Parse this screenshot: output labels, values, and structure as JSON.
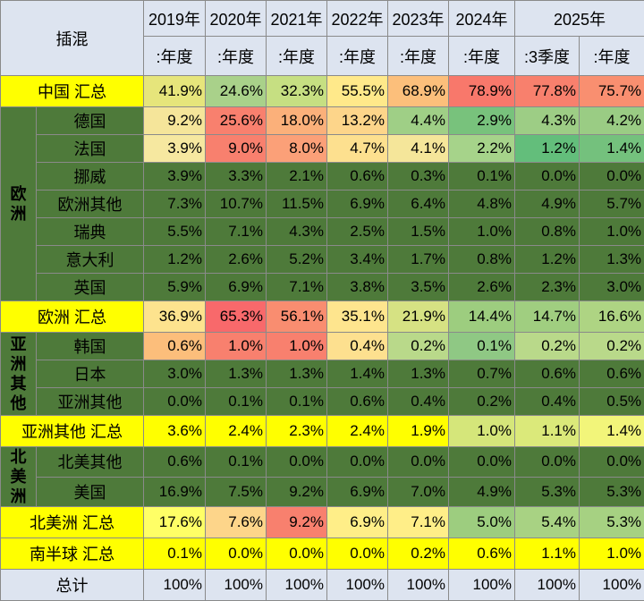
{
  "table": {
    "corner": "插混",
    "years": [
      "2019年",
      "2020年",
      "2021年",
      "2022年",
      "2023年",
      "2024年",
      "2025年"
    ],
    "periods": [
      ":年度",
      ":年度",
      ":年度",
      ":年度",
      ":年度",
      ":年度",
      ":3季度",
      ":年度"
    ],
    "sections": [
      {
        "label": "中国 汇总",
        "cells": [
          "41.9%",
          "24.6%",
          "32.3%",
          "55.5%",
          "68.9%",
          "78.9%",
          "77.8%",
          "75.7%"
        ],
        "fills": [
          "#e6e57b",
          "#a9d18a",
          "#c6df82",
          "#ffe98a",
          "#fcbf7b",
          "#f8786b",
          "#f8806d",
          "#f98f70"
        ]
      },
      {
        "group": "欧洲",
        "rows": [
          {
            "label": "德国",
            "cells": [
              "9.2%",
              "25.6%",
              "18.0%",
              "13.2%",
              "4.4%",
              "2.9%",
              "4.3%",
              "4.2%"
            ],
            "fills": [
              "#f5e59a",
              "#f8806e",
              "#fbb07a",
              "#fdd58a",
              "#9fcf86",
              "#78c27c",
              "#9dcd85",
              "#9acc84"
            ]
          },
          {
            "label": "法国",
            "cells": [
              "3.9%",
              "9.0%",
              "8.0%",
              "4.7%",
              "4.1%",
              "2.2%",
              "1.2%",
              "1.4%"
            ],
            "fills": [
              "#f6e8a0",
              "#f8806e",
              "#fba078",
              "#fde08f",
              "#f5e69a",
              "#a6d38a",
              "#63be7b",
              "#74c17d"
            ]
          },
          {
            "label": "挪威",
            "cells": [
              "3.9%",
              "3.3%",
              "2.1%",
              "0.6%",
              "0.3%",
              "0.1%",
              "0.0%",
              "0.0%"
            ],
            "fill": "#4e7a3a"
          },
          {
            "label": "欧洲其他",
            "cells": [
              "7.3%",
              "10.7%",
              "11.5%",
              "6.9%",
              "6.4%",
              "4.8%",
              "4.9%",
              "5.7%"
            ],
            "fill": "#4e7a3a"
          },
          {
            "label": "瑞典",
            "cells": [
              "5.5%",
              "7.1%",
              "4.3%",
              "2.5%",
              "1.5%",
              "1.0%",
              "0.8%",
              "1.0%"
            ],
            "fill": "#4e7a3a"
          },
          {
            "label": "意大利",
            "cells": [
              "1.2%",
              "2.6%",
              "5.2%",
              "3.4%",
              "1.7%",
              "0.8%",
              "1.2%",
              "1.3%"
            ],
            "fill": "#4e7a3a"
          },
          {
            "label": "英国",
            "cells": [
              "5.9%",
              "6.9%",
              "7.1%",
              "3.8%",
              "3.5%",
              "2.6%",
              "2.3%",
              "3.0%"
            ],
            "fill": "#4e7a3a"
          }
        ]
      },
      {
        "label": "欧洲 汇总",
        "cells": [
          "36.9%",
          "65.3%",
          "56.1%",
          "35.1%",
          "21.9%",
          "14.4%",
          "14.7%",
          "16.6%"
        ],
        "fills": [
          "#fde38e",
          "#f8696b",
          "#f98d70",
          "#fee58e",
          "#d6e283",
          "#9dcd7f",
          "#a0ce80",
          "#aed483"
        ]
      },
      {
        "group": "亚洲其他",
        "rows": [
          {
            "label": "韩国",
            "cells": [
              "0.6%",
              "1.0%",
              "1.0%",
              "0.4%",
              "0.2%",
              "0.1%",
              "0.2%",
              "0.2%"
            ],
            "fills": [
              "#fcbe7b",
              "#f8806e",
              "#f8806e",
              "#fde08f",
              "#b9d98a",
              "#8fc884",
              "#b9d98a",
              "#b9d98a"
            ]
          },
          {
            "label": "日本",
            "cells": [
              "3.0%",
              "1.3%",
              "1.3%",
              "1.4%",
              "1.3%",
              "0.7%",
              "0.6%",
              "0.6%"
            ],
            "fill": "#4e7a3a"
          },
          {
            "label": "亚洲其他",
            "cells": [
              "0.0%",
              "0.1%",
              "0.1%",
              "0.6%",
              "0.4%",
              "0.2%",
              "0.4%",
              "0.5%"
            ],
            "fill": "#4e7a3a"
          }
        ]
      },
      {
        "label": "亚洲其他 汇总",
        "cells": [
          "3.6%",
          "2.4%",
          "2.3%",
          "2.4%",
          "1.9%",
          "1.0%",
          "1.1%",
          "1.4%"
        ],
        "fills": [
          "#ffff00",
          "#ffff00",
          "#ffff00",
          "#ffff00",
          "#ffff00",
          "#d5e67a",
          "#dbe97a",
          "#f2f57a"
        ]
      },
      {
        "group": "北美洲",
        "rows": [
          {
            "label": "北美其他",
            "cells": [
              "0.6%",
              "0.1%",
              "0.0%",
              "0.0%",
              "0.0%",
              "0.0%",
              "0.0%",
              "0.0%"
            ],
            "fill": "#4e7a3a"
          },
          {
            "label": "美国",
            "cells": [
              "16.9%",
              "7.5%",
              "9.2%",
              "6.9%",
              "7.0%",
              "4.9%",
              "5.3%",
              "5.3%"
            ],
            "fill": "#4e7a3a"
          }
        ]
      },
      {
        "label": "北美洲 汇总",
        "cells": [
          "17.6%",
          "7.6%",
          "9.2%",
          "6.9%",
          "7.1%",
          "5.0%",
          "5.4%",
          "5.3%"
        ],
        "fills": [
          "#ffff66",
          "#fdd58a",
          "#f8806e",
          "#ffee88",
          "#ffee88",
          "#9dcd7f",
          "#a8d283",
          "#a6d182"
        ]
      },
      {
        "label": "南半球 汇总",
        "cells": [
          "0.1%",
          "0.0%",
          "0.0%",
          "0.0%",
          "0.2%",
          "0.6%",
          "1.1%",
          "1.0%"
        ],
        "fill": "#ffff00"
      },
      {
        "label": "总计",
        "cells": [
          "100%",
          "100%",
          "100%",
          "100%",
          "100%",
          "100%",
          "100%",
          "100%"
        ],
        "fill": "#dde4f0"
      }
    ]
  }
}
